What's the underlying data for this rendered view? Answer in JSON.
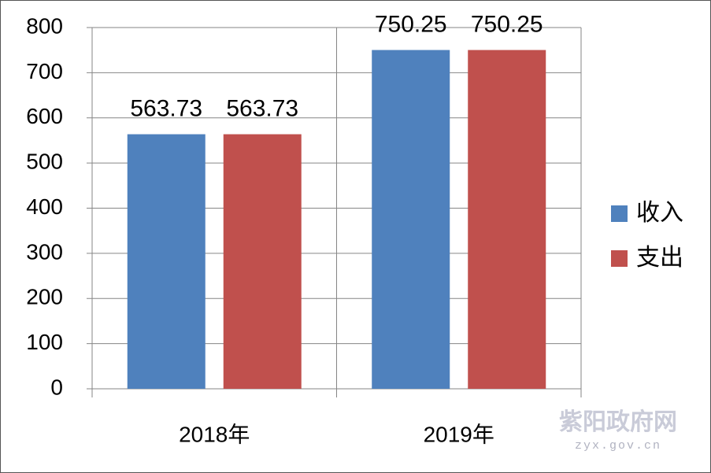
{
  "chart_data": {
    "type": "bar",
    "categories": [
      "2018年",
      "2019年"
    ],
    "series": [
      {
        "name": "收入",
        "color": "#4f81bd",
        "values": [
          563.73,
          750.25
        ]
      },
      {
        "name": "支出",
        "color": "#c0504d",
        "values": [
          563.73,
          750.25
        ]
      }
    ],
    "ylim": [
      0,
      800
    ],
    "yticks": [
      0,
      100,
      200,
      300,
      400,
      500,
      600,
      700,
      800
    ],
    "grid": true,
    "legend": "right",
    "annotations": [
      "紫阳政府网",
      "zyx.gov.cn"
    ]
  }
}
